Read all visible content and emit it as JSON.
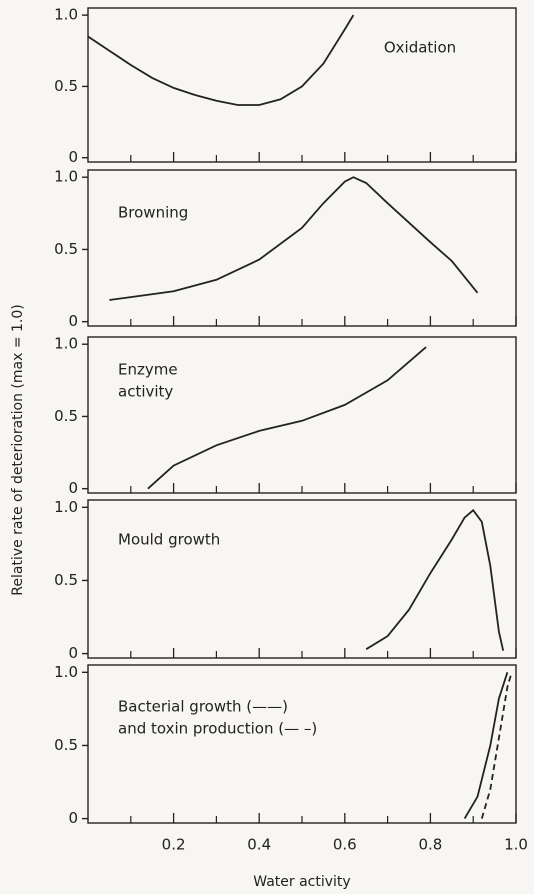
{
  "axis_labels": {
    "y": "Relative rate of deterioration (max = 1.0)",
    "x": "Water activity"
  },
  "chart_data": [
    {
      "type": "line",
      "annotation": [
        "Oxidation"
      ],
      "xlim": [
        0,
        1
      ],
      "ylim": [
        -0.03,
        1.05
      ],
      "yticks": [
        0,
        0.5,
        {
          "value": 1,
          "label": "1.0"
        }
      ],
      "series": [
        {
          "color": "#222222",
          "style": "solid",
          "x": [
            0,
            0.05,
            0.1,
            0.15,
            0.2,
            0.25,
            0.3,
            0.35,
            0.4,
            0.45,
            0.5,
            0.55,
            0.6,
            0.62
          ],
          "values": [
            0.85,
            0.75,
            0.65,
            0.56,
            0.49,
            0.44,
            0.4,
            0.37,
            0.37,
            0.41,
            0.5,
            0.66,
            0.9,
            1.0
          ]
        }
      ]
    },
    {
      "type": "line",
      "annotation": [
        "Browning"
      ],
      "xlim": [
        0,
        1
      ],
      "ylim": [
        -0.03,
        1.05
      ],
      "yticks": [
        0,
        0.5,
        {
          "value": 1,
          "label": "1.0"
        }
      ],
      "series": [
        {
          "color": "#222222",
          "style": "solid",
          "x": [
            0.05,
            0.1,
            0.2,
            0.3,
            0.4,
            0.5,
            0.55,
            0.6,
            0.62,
            0.65,
            0.7,
            0.8,
            0.85,
            0.91
          ],
          "values": [
            0.15,
            0.17,
            0.21,
            0.29,
            0.43,
            0.65,
            0.82,
            0.97,
            1.0,
            0.96,
            0.82,
            0.55,
            0.42,
            0.2
          ]
        }
      ]
    },
    {
      "type": "line",
      "annotation": [
        "Enzyme",
        "activity"
      ],
      "xlim": [
        0,
        1
      ],
      "ylim": [
        -0.03,
        1.05
      ],
      "yticks": [
        0,
        0.5,
        {
          "value": 1,
          "label": "1.0"
        }
      ],
      "series": [
        {
          "color": "#222222",
          "style": "solid",
          "x": [
            0.14,
            0.17,
            0.2,
            0.3,
            0.4,
            0.5,
            0.6,
            0.7,
            0.79
          ],
          "values": [
            0,
            0.08,
            0.16,
            0.3,
            0.4,
            0.47,
            0.58,
            0.75,
            0.98
          ]
        }
      ]
    },
    {
      "type": "line",
      "annotation": [
        "Mould growth"
      ],
      "xlim": [
        0,
        1
      ],
      "ylim": [
        -0.03,
        1.05
      ],
      "yticks": [
        0,
        0.5,
        {
          "value": 1,
          "label": "1.0"
        }
      ],
      "series": [
        {
          "color": "#222222",
          "style": "solid",
          "x": [
            0.65,
            0.7,
            0.75,
            0.8,
            0.85,
            0.88,
            0.9,
            0.92,
            0.94,
            0.96,
            0.97
          ],
          "values": [
            0.03,
            0.12,
            0.3,
            0.55,
            0.78,
            0.93,
            0.98,
            0.9,
            0.6,
            0.15,
            0.02
          ]
        }
      ]
    },
    {
      "type": "line",
      "annotation": [
        "Bacterial growth (——)",
        "and toxin production (— –)"
      ],
      "xlim": [
        0,
        1
      ],
      "ylim": [
        -0.03,
        1.05
      ],
      "yticks": [
        0,
        0.5,
        {
          "value": 1,
          "label": "1.0"
        }
      ],
      "xticks": [
        0.2,
        0.4,
        0.6,
        0.8,
        {
          "value": 1,
          "label": "1.0"
        }
      ],
      "xminorticks": [
        0.1,
        0.3,
        0.5,
        0.7,
        0.9
      ],
      "series": [
        {
          "color": "#222222",
          "style": "solid",
          "x": [
            0.88,
            0.91,
            0.94,
            0.96,
            0.98
          ],
          "values": [
            0,
            0.15,
            0.5,
            0.82,
            1.0
          ]
        },
        {
          "color": "#222222",
          "style": "dashed",
          "x": [
            0.92,
            0.94,
            0.96,
            0.98,
            0.99
          ],
          "values": [
            0,
            0.2,
            0.55,
            0.9,
            1.0
          ]
        }
      ]
    }
  ]
}
